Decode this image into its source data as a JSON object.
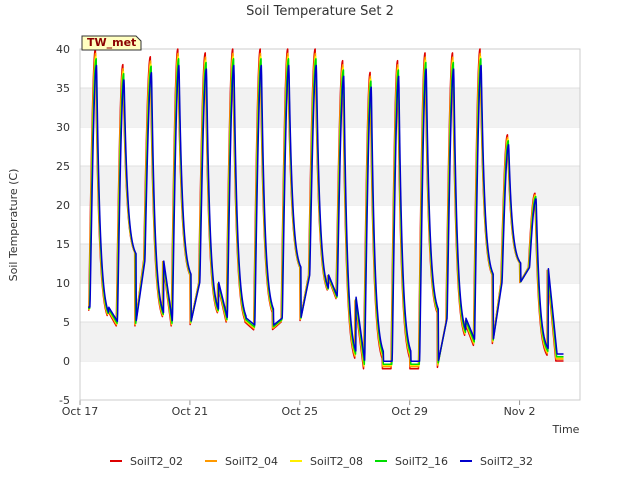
{
  "chart_data": {
    "type": "line",
    "title": "Soil Temperature Set 2",
    "xlabel": "Time",
    "ylabel": "Soil Temperature (C)",
    "site_label": "TW_met",
    "ylim": [
      -5,
      40
    ],
    "yticks": [
      -5,
      0,
      5,
      10,
      15,
      20,
      25,
      30,
      35,
      40
    ],
    "xlim_days": [
      0,
      18.2
    ],
    "xticks": [
      {
        "day": 0,
        "label": "Oct 17"
      },
      {
        "day": 4,
        "label": "Oct 21"
      },
      {
        "day": 8,
        "label": "Oct 25"
      },
      {
        "day": 12,
        "label": "Oct 29"
      },
      {
        "day": 16,
        "label": "Nov 2"
      }
    ],
    "grid": "horizontal-bands",
    "legend_position": "bottom",
    "data_start_day": 0.3,
    "daily_extremes": {
      "min": [
        6.5,
        4.5,
        13,
        4.5,
        10,
        5,
        4,
        5,
        11,
        8,
        -1,
        -1,
        -1,
        5,
        2,
        10,
        12,
        0
      ],
      "max": [
        40,
        38,
        39,
        40,
        39.5,
        40,
        40,
        40,
        40,
        38.5,
        37,
        38.5,
        39.5,
        39.5,
        40,
        29,
        21.5,
        0
      ]
    },
    "series": [
      {
        "name": "SoilT2_02",
        "color": "#dd0000",
        "amplitude": 1.0,
        "lag": 0.0
      },
      {
        "name": "SoilT2_04",
        "color": "#ff9900",
        "amplitude": 0.96,
        "lag": 0.01
      },
      {
        "name": "SoilT2_08",
        "color": "#ffee00",
        "amplitude": 0.93,
        "lag": 0.02
      },
      {
        "name": "SoilT2_16",
        "color": "#00dd00",
        "amplitude": 0.91,
        "lag": 0.03
      },
      {
        "name": "SoilT2_32",
        "color": "#0000cc",
        "amplitude": 0.85,
        "lag": 0.045
      }
    ]
  }
}
